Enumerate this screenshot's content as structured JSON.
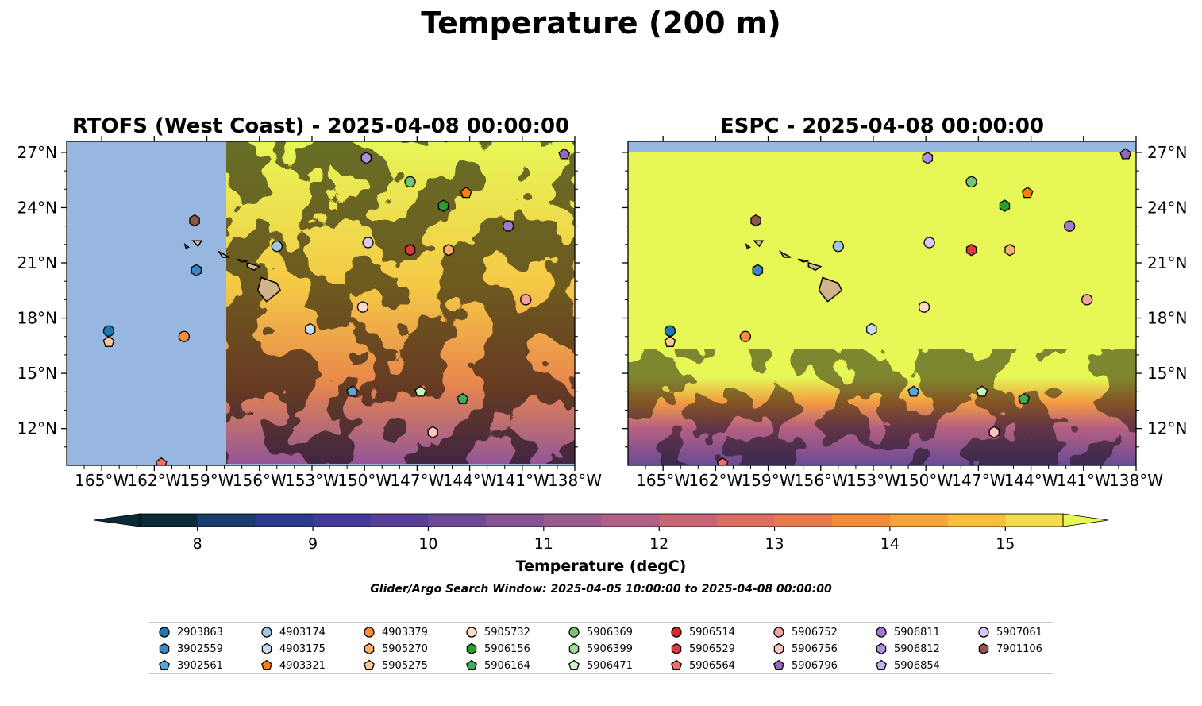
{
  "figure": {
    "title": "Temperature (200 m)",
    "colorbar_label": "Temperature (degC)",
    "subtitle": "Glider/Argo Search Window: 2025-04-05 10:00:00 to 2025-04-08 00:00:00"
  },
  "colors": {
    "land": "#d2b48c",
    "nodata": "#97b6e0",
    "cbar_colors": [
      "#0b2a38",
      "#1a3b6e",
      "#2a3a8f",
      "#423a98",
      "#583f98",
      "#6d4a96",
      "#845393",
      "#9a5a8e",
      "#b15f84",
      "#c86675",
      "#db6d61",
      "#e87b4c",
      "#f38c3c",
      "#f8a43a",
      "#f9bf3c",
      "#f4db4a",
      "#e6f756"
    ]
  },
  "chart_data": [
    {
      "type": "heatmap",
      "title": "RTOFS (West Coast) - 2025-04-08 00:00:00",
      "lon_range": [
        -167,
        -138
      ],
      "lat_range": [
        10,
        27.6
      ],
      "coverage_lon_min": -157.9,
      "x_ticks": [
        "165°W",
        "162°W",
        "159°W",
        "156°W",
        "153°W",
        "150°W",
        "147°W",
        "144°W",
        "141°W",
        "138°W"
      ],
      "x_tick_values": [
        -165,
        -162,
        -159,
        -156,
        -153,
        -150,
        -147,
        -144,
        -141,
        -138
      ],
      "y_ticks": [
        "12°N",
        "15°N",
        "18°N",
        "21°N",
        "24°N",
        "27°N"
      ],
      "y_tick_values": [
        12,
        15,
        18,
        21,
        24,
        27
      ],
      "ytick_side": "left"
    },
    {
      "type": "heatmap",
      "title": "ESPC - 2025-04-08 00:00:00",
      "lon_range": [
        -167,
        -138
      ],
      "lat_range": [
        10,
        27.6
      ],
      "coverage_lat_max": 27.0,
      "x_ticks": [
        "165°W",
        "162°W",
        "159°W",
        "156°W",
        "153°W",
        "150°W",
        "147°W",
        "144°W",
        "141°W",
        "138°W"
      ],
      "x_tick_values": [
        -165,
        -162,
        -159,
        -156,
        -153,
        -150,
        -147,
        -144,
        -141,
        -138
      ],
      "y_ticks": [
        "12°N",
        "15°N",
        "18°N",
        "21°N",
        "24°N",
        "27°N"
      ],
      "y_tick_values": [
        12,
        15,
        18,
        21,
        24,
        27
      ],
      "ytick_side": "right"
    }
  ],
  "colorbar": {
    "min": 7.5,
    "max": 16.0,
    "step": 0.5,
    "ticks": [
      8,
      9,
      10,
      11,
      12,
      13,
      14,
      15
    ],
    "tick_labels": [
      "8",
      "9",
      "10",
      "11",
      "12",
      "13",
      "14",
      "15"
    ]
  },
  "floats": [
    {
      "id": "2903863",
      "marker": "circle",
      "color": "#1f77b4",
      "lon": -164.6,
      "lat": 17.3
    },
    {
      "id": "3902559",
      "marker": "hexagon",
      "color": "#3a86c6",
      "lon": -159.6,
      "lat": 20.6
    },
    {
      "id": "3902561",
      "marker": "pentagon",
      "color": "#5aa4dc",
      "lon": -150.7,
      "lat": 14.0
    },
    {
      "id": "4903174",
      "marker": "circle",
      "color": "#9ecae1",
      "lon": -155.0,
      "lat": 21.9
    },
    {
      "id": "4903175",
      "marker": "hexagon",
      "color": "#c6dbef",
      "lon": -153.1,
      "lat": 17.4
    },
    {
      "id": "4903321",
      "marker": "pentagon",
      "color": "#ff7f0e",
      "lon": -144.2,
      "lat": 24.8
    },
    {
      "id": "4903379",
      "marker": "circle",
      "color": "#fd8d3c",
      "lon": -160.3,
      "lat": 17.0
    },
    {
      "id": "5905270",
      "marker": "hexagon",
      "color": "#fdae6b",
      "lon": -145.2,
      "lat": 21.7
    },
    {
      "id": "5905275",
      "marker": "pentagon",
      "color": "#fdc791",
      "lon": -164.6,
      "lat": 16.7
    },
    {
      "id": "5905732",
      "marker": "circle",
      "color": "#fddbc7",
      "lon": -150.1,
      "lat": 18.6
    },
    {
      "id": "5906156",
      "marker": "hexagon",
      "color": "#2ca02c",
      "lon": -145.5,
      "lat": 24.1
    },
    {
      "id": "5906164",
      "marker": "pentagon",
      "color": "#41ab5d",
      "lon": -144.4,
      "lat": 13.6
    },
    {
      "id": "5906369",
      "marker": "circle",
      "color": "#74c476",
      "lon": -147.4,
      "lat": 25.4
    },
    {
      "id": "5906399",
      "marker": "hexagon",
      "color": "#a1d99b",
      "lon": -148.0,
      "lat": 24.5,
      "hidden": true
    },
    {
      "id": "5906471",
      "marker": "pentagon",
      "color": "#c7f5c0",
      "lon": -146.8,
      "lat": 14.0
    },
    {
      "id": "5906514",
      "marker": "circle",
      "color": "#d62728",
      "lon": -160.0,
      "lat": 13.0,
      "hidden": true
    },
    {
      "id": "5906529",
      "marker": "hexagon",
      "color": "#e0393b",
      "lon": -147.4,
      "lat": 21.7
    },
    {
      "id": "5906564",
      "marker": "pentagon",
      "color": "#f26b6b",
      "lon": -161.6,
      "lat": 10.1
    },
    {
      "id": "5906752",
      "marker": "circle",
      "color": "#f4a3a3",
      "lon": -140.8,
      "lat": 19.0
    },
    {
      "id": "5906756",
      "marker": "hexagon",
      "color": "#fcc5c0",
      "lon": -146.1,
      "lat": 11.8
    },
    {
      "id": "5906796",
      "marker": "pentagon",
      "color": "#9467bd",
      "lon": -138.6,
      "lat": 26.9
    },
    {
      "id": "5906811",
      "marker": "circle",
      "color": "#a17acb",
      "lon": -141.8,
      "lat": 23.0
    },
    {
      "id": "5906812",
      "marker": "hexagon",
      "color": "#b08ee0",
      "lon": -149.9,
      "lat": 26.7
    },
    {
      "id": "5906854",
      "marker": "pentagon",
      "color": "#c8b0f5",
      "lon": -148.0,
      "lat": 12.5,
      "hidden": true
    },
    {
      "id": "5907061",
      "marker": "circle",
      "color": "#dcc7fb",
      "lon": -149.8,
      "lat": 22.1
    },
    {
      "id": "7901106",
      "marker": "hexagon",
      "color": "#8c564b",
      "lon": -159.7,
      "lat": 23.3
    }
  ]
}
